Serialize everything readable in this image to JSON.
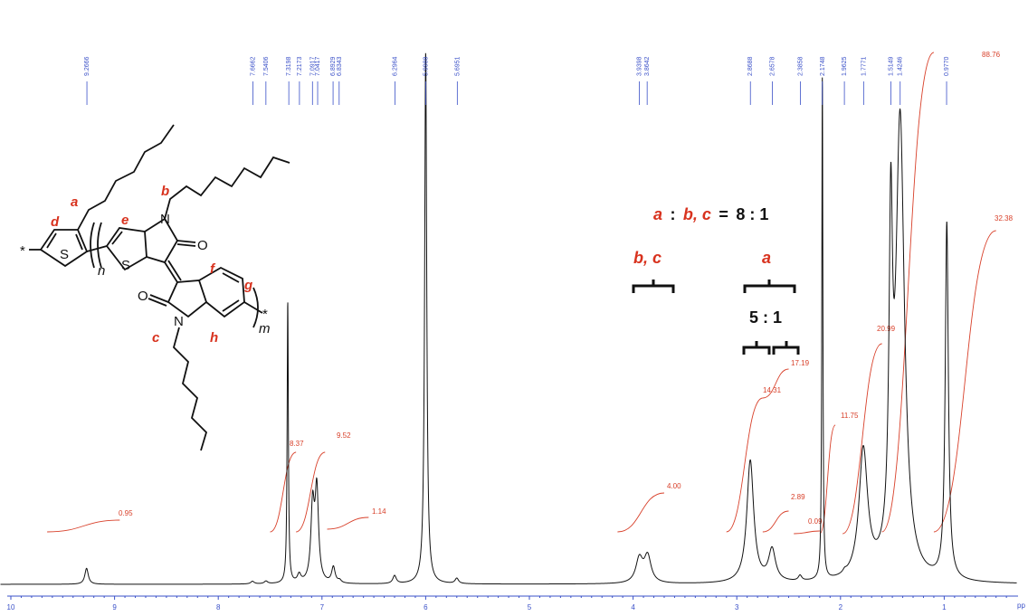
{
  "chart_data": {
    "type": "line",
    "title": "",
    "xlabel": "pp",
    "ylabel": "",
    "xlim": [
      10.1,
      0.3
    ],
    "x_reversed": true,
    "grid": false,
    "legend": "none",
    "x_ticks": [
      10,
      9,
      8,
      7,
      6,
      5,
      4,
      3,
      2,
      1
    ],
    "peak_labels": [
      "9.2666",
      "7.6662",
      "7.5406",
      "7.3198",
      "7.2173",
      "7.0917",
      "7.0417",
      "6.8929",
      "6.8343",
      "6.2964",
      "5.9988",
      "5.6951",
      "3.9398",
      "3.8642",
      "2.8688",
      "2.6578",
      "2.3858",
      "2.1748",
      "1.9625",
      "1.7771",
      "1.5149",
      "1.4246",
      "0.9770"
    ],
    "series": [
      {
        "x": [
          9.27,
          7.67,
          7.54,
          7.33,
          7.22,
          7.09,
          7.05,
          6.89,
          6.83,
          6.3,
          6.0,
          5.7,
          3.94,
          3.86,
          2.87,
          2.66,
          2.39,
          2.175,
          1.96,
          1.78,
          1.515,
          1.425,
          0.975
        ],
        "y": [
          0.03,
          0.005,
          0.005,
          0.53,
          0.015,
          0.14,
          0.17,
          0.03,
          0.005,
          0.015,
          1.0,
          0.01,
          0.045,
          0.05,
          0.23,
          0.06,
          0.01,
          0.95,
          0.005,
          0.24,
          0.58,
          0.86,
          0.67
        ]
      }
    ],
    "integrals": [
      {
        "label": "0.95",
        "from": 9.65,
        "to": 8.95
      },
      {
        "label": "8.37",
        "from": 7.5,
        "to": 7.25
      },
      {
        "label": "9.52",
        "from": 7.25,
        "to": 6.97
      },
      {
        "label": "1.14",
        "from": 6.95,
        "to": 6.55
      },
      {
        "label": "4.00",
        "from": 4.15,
        "to": 3.7
      },
      {
        "label": "14.31",
        "from": 3.1,
        "to": 2.75
      },
      {
        "label": "17.19",
        "from": 2.75,
        "to": 2.5
      },
      {
        "label": "2.89",
        "from": 2.75,
        "to": 2.5
      },
      {
        "label": "0.09",
        "from": 2.45,
        "to": 2.2
      },
      {
        "label": "11.75",
        "from": 2.2,
        "to": 2.05
      },
      {
        "label": "20.99",
        "from": 1.98,
        "to": 1.6
      },
      {
        "label": "88.76",
        "from": 1.6,
        "to": 1.1
      },
      {
        "label": "32.38",
        "from": 1.1,
        "to": 0.5
      }
    ]
  },
  "annotations": {
    "ratio_abc": {
      "a": "a",
      "colon1": ":",
      "bc": "b, c",
      "eq": "=",
      "value": "8 : 1"
    },
    "bc_label": "b, c",
    "a_label": "a",
    "sub_ratio": "5 : 1"
  },
  "structure": {
    "labels": {
      "a": "a",
      "b": "b",
      "c": "c",
      "d": "d",
      "e": "e",
      "f": "f",
      "g": "g",
      "h": "h"
    },
    "atoms": {
      "S1": "S",
      "S2": "S",
      "N1": "N",
      "N2": "N",
      "O1": "O",
      "O2": "O"
    },
    "subscripts": {
      "n": "n",
      "m": "m"
    },
    "star": "*"
  }
}
